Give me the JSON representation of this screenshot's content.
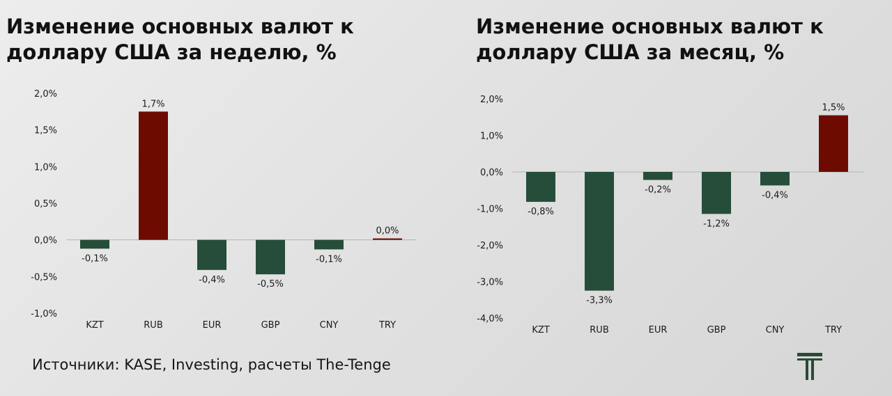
{
  "source_text": "Источники: KASE, Investing, расчеты The-Tenge",
  "colors": {
    "positive": "#6e0b00",
    "negative": "#264d39",
    "baseline": "#b5b5b5",
    "text": "#1a1a1a",
    "logo": "#2a4a36"
  },
  "logo": {
    "icon": "the-tenge-logo-icon"
  },
  "chart_data": [
    {
      "type": "bar",
      "title": "Изменение основных валют к\nдоллару США за неделю, %",
      "categories": [
        "KZT",
        "RUB",
        "EUR",
        "GBP",
        "CNY",
        "TRY"
      ],
      "values": [
        -0.12,
        1.75,
        -0.41,
        -0.47,
        -0.13,
        0.02
      ],
      "data_labels": [
        "-0,1%",
        "1,7%",
        "-0,4%",
        "-0,5%",
        "-0,1%",
        "0,0%"
      ],
      "ylim": [
        -1.0,
        2.0
      ],
      "yticks": [
        2.0,
        1.5,
        1.0,
        0.5,
        0.0,
        -0.5,
        -1.0
      ],
      "ytick_labels": [
        "2,0%",
        "1,5%",
        "1,0%",
        "0,5%",
        "0,0%",
        "-0,5%",
        "-1,0%"
      ],
      "xlabel": "",
      "ylabel": "",
      "grid": false,
      "legend": "none"
    },
    {
      "type": "bar",
      "title": "Изменение основных валют к\nдоллару США за месяц, %",
      "categories": [
        "KZT",
        "RUB",
        "EUR",
        "GBP",
        "CNY",
        "TRY"
      ],
      "values": [
        -0.82,
        -3.25,
        -0.22,
        -1.15,
        -0.37,
        1.55
      ],
      "data_labels": [
        "-0,8%",
        "-3,3%",
        "-0,2%",
        "-1,2%",
        "-0,4%",
        "1,5%"
      ],
      "ylim": [
        -4.0,
        2.0
      ],
      "yticks": [
        2.0,
        1.0,
        0.0,
        -1.0,
        -2.0,
        -3.0,
        -4.0
      ],
      "ytick_labels": [
        "2,0%",
        "1,0%",
        "0,0%",
        "-1,0%",
        "-2,0%",
        "-3,0%",
        "-4,0%"
      ],
      "xlabel": "",
      "ylabel": "",
      "grid": false,
      "legend": "none"
    }
  ]
}
